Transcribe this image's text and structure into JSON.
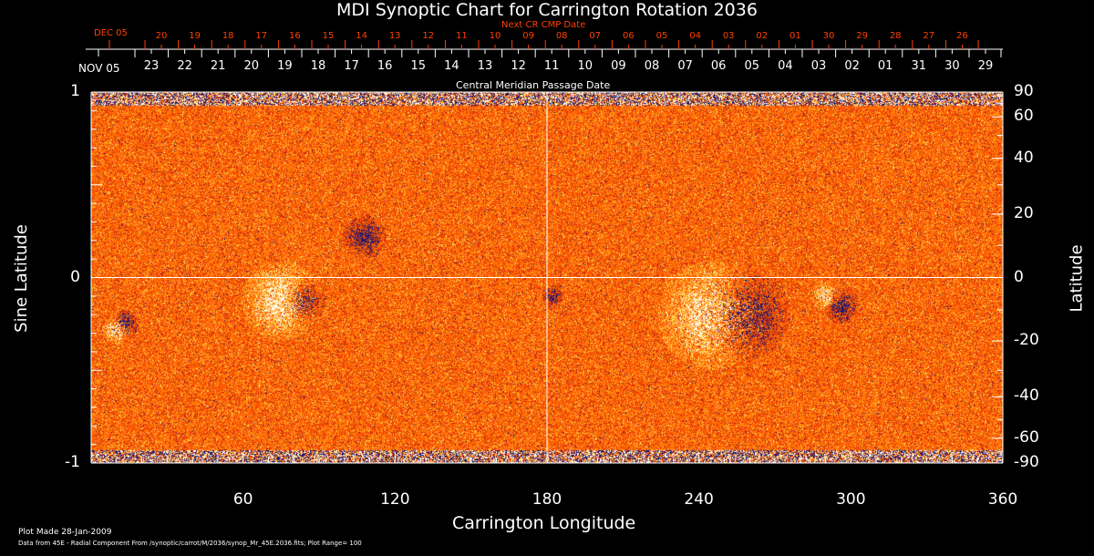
{
  "chart_data": {
    "type": "heatmap",
    "title": "MDI Synoptic Chart for Carrington Rotation 2036",
    "xlabel": "Carrington Longitude",
    "ylabel_left": "Sine Latitude",
    "ylabel_right": "Latitude",
    "xlim": [
      0,
      360
    ],
    "ylim": [
      -1,
      1
    ],
    "x_ticks": [
      60,
      120,
      180,
      240,
      300,
      360
    ],
    "y_ticks_left": [
      1,
      0,
      -1
    ],
    "y_ticks_right": [
      90,
      60,
      40,
      20,
      0,
      -20,
      -40,
      -60,
      -90
    ],
    "top_axis_label": "Central Meridian Passage Date",
    "top_start_label": "NOV 05",
    "top_dates": [
      "23",
      "22",
      "21",
      "20",
      "19",
      "18",
      "17",
      "16",
      "15",
      "14",
      "13",
      "12",
      "11",
      "10",
      "09",
      "08",
      "07",
      "06",
      "05",
      "04",
      "03",
      "02",
      "01",
      "31",
      "30",
      "29"
    ],
    "next_cr_label": "Next CR CMP Date",
    "next_start_label": "DEC 05",
    "next_dates": [
      "20",
      "19",
      "18",
      "17",
      "16",
      "15",
      "14",
      "13",
      "12",
      "11",
      "10",
      "09",
      "08",
      "07",
      "06",
      "05",
      "04",
      "03",
      "02",
      "01",
      "30",
      "29",
      "28",
      "27",
      "26"
    ],
    "plot_range": 100,
    "colors": {
      "positive": "#ffffff",
      "mid": "#ff5a00",
      "negative": "#1a1a6e",
      "next": "#ff4000"
    }
  },
  "footer": {
    "plot_made": "Plot Made 28-Jan-2009",
    "data_from": "Data from 45E - Radial Component From /synoptic/carrot/M/2036/synop_Mr_45E.2036.fits; Plot Range=  100"
  }
}
